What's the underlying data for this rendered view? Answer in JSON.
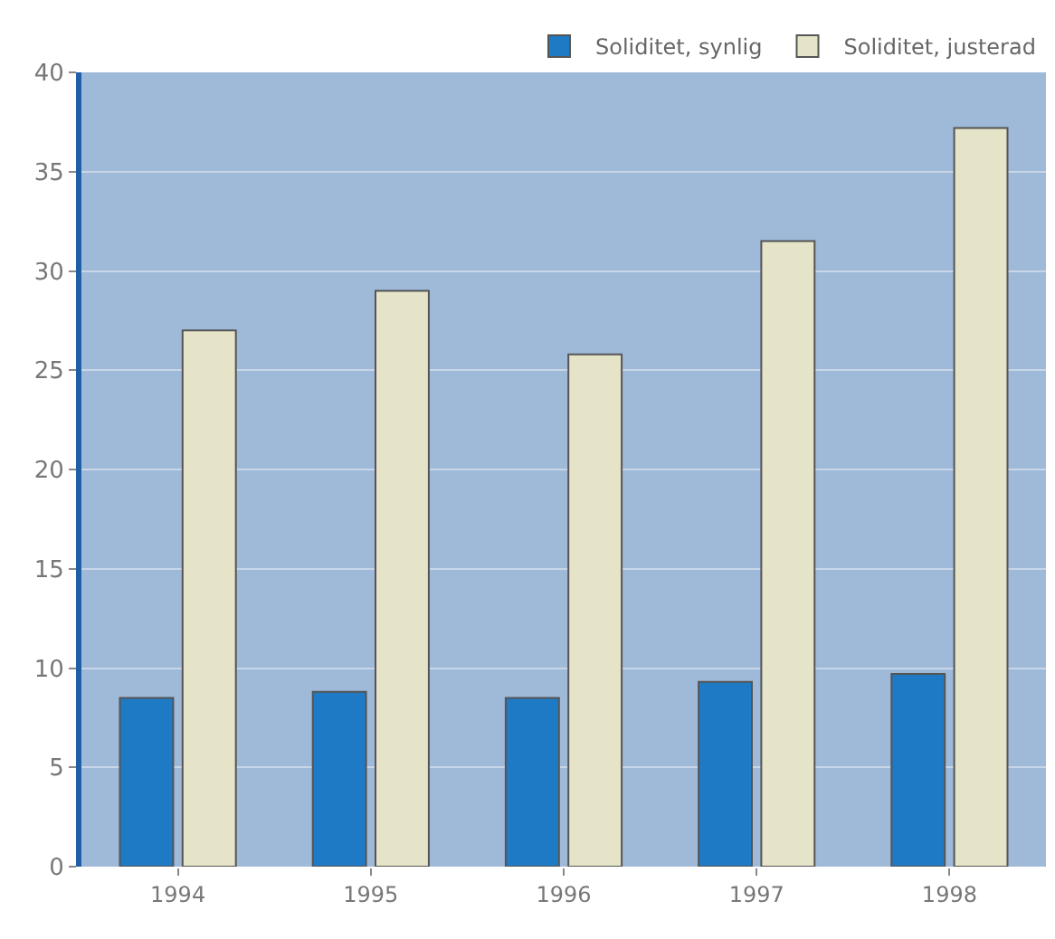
{
  "chart_data": {
    "type": "bar",
    "categories": [
      "1994",
      "1995",
      "1996",
      "1997",
      "1998"
    ],
    "series": [
      {
        "name": "Soliditet, synlig",
        "color": "#1f7ac6",
        "values": [
          8.5,
          8.8,
          8.5,
          9.3,
          9.7
        ]
      },
      {
        "name": "Soliditet, justerad",
        "color": "#e6e4c8",
        "values": [
          27,
          29,
          25.8,
          31.5,
          37.2
        ]
      }
    ],
    "ylim": [
      0,
      40
    ],
    "yticks": [
      0,
      5,
      10,
      15,
      20,
      25,
      30,
      35,
      40
    ],
    "grid": "y",
    "legend": "top right"
  }
}
